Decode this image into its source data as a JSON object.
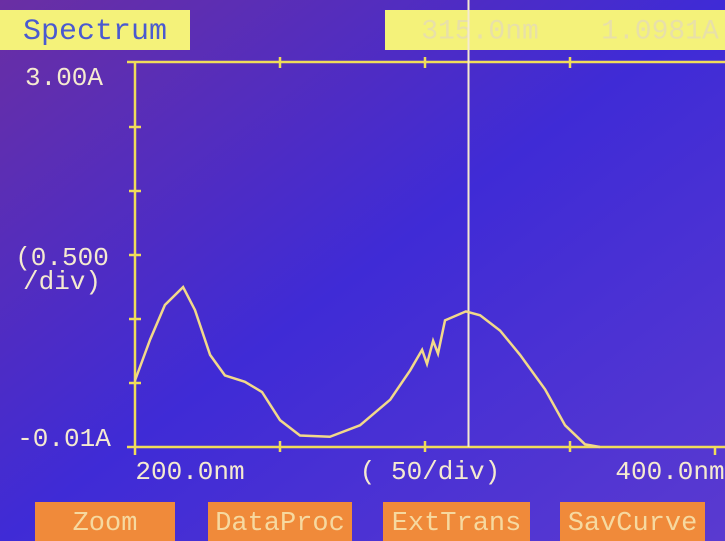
{
  "header": {
    "title": "Spectrum",
    "cursor_wavelength": {
      "value": 315,
      "label": "315.0nm"
    },
    "cursor_absorbance": {
      "value": 1.0981,
      "label": "1.0981A"
    }
  },
  "chart_data": {
    "type": "line",
    "x": [
      200,
      205.2,
      210.3,
      216.6,
      220.7,
      225.9,
      231,
      237.9,
      243.8,
      250,
      256.9,
      267.2,
      277.6,
      288,
      294.9,
      299,
      300.7,
      302.8,
      304.5,
      306.9,
      314.1,
      319,
      325.9,
      332.8,
      341.4,
      348.3,
      355.2,
      360.3
    ],
    "series": [
      {
        "color": "#f2d98a",
        "values": [
          0.51,
          0.83,
          1.1,
          1.24,
          1.06,
          0.71,
          0.55,
          0.5,
          0.42,
          0.2,
          0.08,
          0.07,
          0.16,
          0.36,
          0.59,
          0.75,
          0.64,
          0.82,
          0.72,
          0.98,
          1.05,
          1.02,
          0.9,
          0.71,
          0.44,
          0.16,
          0.01,
          -0.01
        ]
      }
    ],
    "xlim": [
      200,
      400
    ],
    "ylim": [
      -0.01,
      3.0
    ],
    "xticks": [
      {
        "value": 200,
        "label": "200.0nm"
      },
      {
        "value": 400,
        "label": "400.0nm"
      }
    ],
    "yticks": [
      {
        "value": 3.0,
        "label": "3.00A"
      },
      {
        "value": -0.01,
        "label": "-0.01A"
      }
    ],
    "x_division_label": "( 50/div)",
    "y_division_label": [
      "(0.500",
      "/div)"
    ]
  },
  "buttons": [
    "Zoom",
    "DataProc",
    "ExtTrans",
    "SavCurve"
  ]
}
